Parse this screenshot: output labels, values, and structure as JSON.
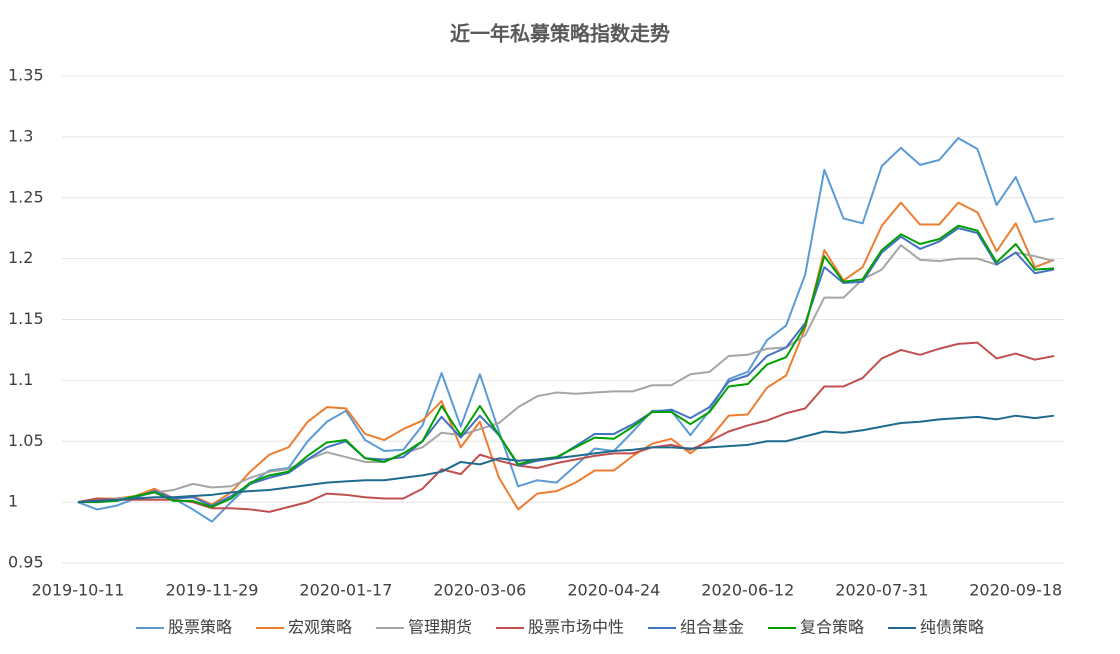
{
  "chart_data": {
    "type": "line",
    "title": "近一年私募策略指数走势",
    "categories": [
      "2019-10-11",
      null,
      null,
      null,
      null,
      null,
      null,
      "2019-11-29",
      null,
      null,
      null,
      null,
      null,
      null,
      "2020-01-17",
      null,
      null,
      null,
      null,
      null,
      null,
      "2020-03-06",
      null,
      null,
      null,
      null,
      null,
      null,
      "2020-04-24",
      null,
      null,
      null,
      null,
      null,
      null,
      "2020-06-12",
      null,
      null,
      null,
      null,
      null,
      null,
      "2020-07-31",
      null,
      null,
      null,
      null,
      null,
      null,
      "2020-09-18",
      null,
      null
    ],
    "ylim": [
      0.95,
      1.35
    ],
    "yticks": [
      0.95,
      1,
      1.05,
      1.1,
      1.15,
      1.2,
      1.25,
      1.3,
      1.35
    ],
    "grid": true,
    "legend": "bottom",
    "series": [
      {
        "name": "股票策略",
        "color": "#5b9bd5",
        "values": [
          1.0,
          0.994,
          0.997,
          1.003,
          1.01,
          1.003,
          0.994,
          0.984,
          1.0,
          1.015,
          1.026,
          1.028,
          1.05,
          1.066,
          1.075,
          1.051,
          1.042,
          1.043,
          1.063,
          1.106,
          1.062,
          1.105,
          1.058,
          1.013,
          1.018,
          1.016,
          1.03,
          1.044,
          1.042,
          1.058,
          1.075,
          1.075,
          1.055,
          1.075,
          1.101,
          1.107,
          1.133,
          1.145,
          1.187,
          1.273,
          1.233,
          1.229,
          1.276,
          1.291,
          1.277,
          1.281,
          1.299,
          1.29,
          1.244,
          1.267,
          1.23,
          1.233
        ]
      },
      {
        "name": "宏观策略",
        "color": "#ed7d31",
        "values": [
          1.0,
          1.003,
          1.003,
          1.005,
          1.011,
          1.003,
          1.005,
          0.998,
          1.008,
          1.025,
          1.039,
          1.045,
          1.066,
          1.078,
          1.077,
          1.056,
          1.051,
          1.06,
          1.067,
          1.083,
          1.045,
          1.066,
          1.02,
          0.994,
          1.007,
          1.009,
          1.016,
          1.026,
          1.026,
          1.038,
          1.048,
          1.052,
          1.04,
          1.052,
          1.071,
          1.072,
          1.094,
          1.104,
          1.143,
          1.207,
          1.182,
          1.193,
          1.227,
          1.246,
          1.228,
          1.228,
          1.246,
          1.238,
          1.206,
          1.229,
          1.193,
          1.199
        ]
      },
      {
        "name": "管理期货",
        "color": "#a5a5a5",
        "values": [
          1.0,
          1.002,
          1.003,
          1.004,
          1.008,
          1.01,
          1.015,
          1.012,
          1.013,
          1.02,
          1.025,
          1.027,
          1.035,
          1.041,
          1.037,
          1.033,
          1.033,
          1.04,
          1.045,
          1.057,
          1.055,
          1.06,
          1.065,
          1.078,
          1.087,
          1.09,
          1.089,
          1.09,
          1.091,
          1.091,
          1.096,
          1.096,
          1.105,
          1.107,
          1.12,
          1.121,
          1.126,
          1.127,
          1.137,
          1.168,
          1.168,
          1.183,
          1.191,
          1.211,
          1.199,
          1.198,
          1.2,
          1.2,
          1.195,
          1.205,
          1.202,
          1.198
        ]
      },
      {
        "name": "股票市场中性",
        "color": "#c0504d",
        "values": [
          1.0,
          1.003,
          1.002,
          1.002,
          1.002,
          1.002,
          1.0,
          0.995,
          0.995,
          0.994,
          0.992,
          0.996,
          1.0,
          1.007,
          1.006,
          1.004,
          1.003,
          1.003,
          1.011,
          1.027,
          1.023,
          1.039,
          1.034,
          1.03,
          1.028,
          1.032,
          1.035,
          1.038,
          1.04,
          1.04,
          1.045,
          1.047,
          1.043,
          1.05,
          1.058,
          1.063,
          1.067,
          1.073,
          1.077,
          1.095,
          1.095,
          1.102,
          1.118,
          1.125,
          1.121,
          1.126,
          1.13,
          1.131,
          1.118,
          1.122,
          1.117,
          1.12
        ]
      },
      {
        "name": "组合基金",
        "color": "#4472c4",
        "values": [
          1.0,
          1.001,
          1.001,
          1.004,
          1.009,
          1.003,
          1.004,
          0.997,
          1.005,
          1.015,
          1.02,
          1.024,
          1.035,
          1.045,
          1.05,
          1.036,
          1.035,
          1.037,
          1.05,
          1.07,
          1.053,
          1.071,
          1.055,
          1.03,
          1.034,
          1.036,
          1.046,
          1.056,
          1.056,
          1.064,
          1.074,
          1.076,
          1.069,
          1.078,
          1.099,
          1.104,
          1.12,
          1.127,
          1.147,
          1.193,
          1.18,
          1.181,
          1.205,
          1.218,
          1.208,
          1.214,
          1.225,
          1.221,
          1.195,
          1.205,
          1.188,
          1.191
        ]
      },
      {
        "name": "复合策略",
        "color": "#00a000",
        "values": [
          1.0,
          1.0,
          1.001,
          1.005,
          1.008,
          1.001,
          1.001,
          0.996,
          1.003,
          1.016,
          1.022,
          1.025,
          1.038,
          1.049,
          1.051,
          1.036,
          1.033,
          1.04,
          1.05,
          1.079,
          1.055,
          1.079,
          1.055,
          1.031,
          1.035,
          1.037,
          1.045,
          1.053,
          1.052,
          1.062,
          1.074,
          1.074,
          1.064,
          1.074,
          1.095,
          1.097,
          1.113,
          1.119,
          1.145,
          1.202,
          1.181,
          1.183,
          1.207,
          1.22,
          1.212,
          1.216,
          1.227,
          1.223,
          1.197,
          1.212,
          1.191,
          1.192
        ]
      },
      {
        "name": "纯债策略",
        "color": "#1f6b8e",
        "values": [
          1.0,
          1.001,
          1.002,
          1.003,
          1.004,
          1.004,
          1.005,
          1.006,
          1.008,
          1.009,
          1.01,
          1.012,
          1.014,
          1.016,
          1.017,
          1.018,
          1.018,
          1.02,
          1.022,
          1.025,
          1.033,
          1.031,
          1.036,
          1.034,
          1.035,
          1.036,
          1.038,
          1.04,
          1.042,
          1.043,
          1.045,
          1.045,
          1.044,
          1.045,
          1.046,
          1.047,
          1.05,
          1.05,
          1.054,
          1.058,
          1.057,
          1.059,
          1.062,
          1.065,
          1.066,
          1.068,
          1.069,
          1.07,
          1.068,
          1.071,
          1.069,
          1.071
        ]
      }
    ]
  }
}
